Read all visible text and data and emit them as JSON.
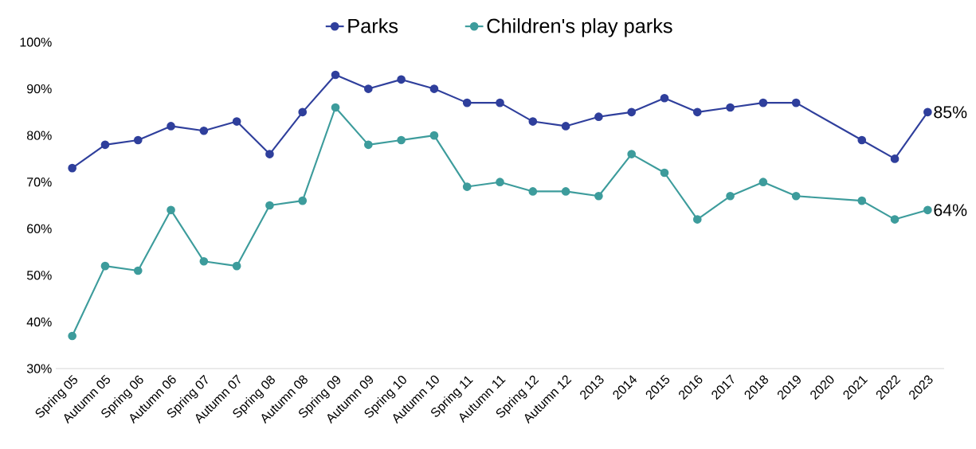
{
  "chart_data": {
    "type": "line",
    "categories": [
      "Spring 05",
      "Autumn 05",
      "Spring 06",
      "Autumn 06",
      "Spring 07",
      "Autumn 07",
      "Spring 08",
      "Autumn 08",
      "Spring 09",
      "Autumn 09",
      "Spring 10",
      "Autumn 10",
      "Spring 11",
      "Autumn 11",
      "Spring 12",
      "Autumn 12",
      "2013",
      "2014",
      "2015",
      "2016",
      "2017",
      "2018",
      "2019",
      "2020",
      "2021",
      "2022",
      "2023"
    ],
    "series": [
      {
        "name": "Parks",
        "color": "#2f3f9c",
        "values": [
          73,
          78,
          79,
          82,
          81,
          83,
          76,
          85,
          93,
          90,
          92,
          90,
          87,
          87,
          83,
          82,
          84,
          85,
          88,
          85,
          86,
          87,
          87,
          null,
          79,
          75,
          85
        ]
      },
      {
        "name": "Children's play parks",
        "color": "#3d9c9c",
        "values": [
          37,
          52,
          51,
          64,
          53,
          52,
          65,
          66,
          86,
          78,
          79,
          80,
          69,
          70,
          68,
          68,
          67,
          76,
          72,
          62,
          67,
          70,
          67,
          null,
          66,
          62,
          64
        ]
      }
    ],
    "ylim": [
      30,
      100
    ],
    "yticks": [
      {
        "value": 30,
        "label": "30%"
      },
      {
        "value": 40,
        "label": "40%"
      },
      {
        "value": 50,
        "label": "50%"
      },
      {
        "value": 60,
        "label": "60%"
      },
      {
        "value": 70,
        "label": "70%"
      },
      {
        "value": 80,
        "label": "80%"
      },
      {
        "value": 90,
        "label": "90%"
      },
      {
        "value": 100,
        "label": "100%"
      }
    ],
    "annotations": [
      {
        "text": "85%",
        "x": "2023",
        "y": 85
      },
      {
        "text": "64%",
        "x": "2023",
        "y": 64
      }
    ],
    "legend": "top",
    "grid": false,
    "marker": "circle",
    "line_style": "solid"
  }
}
